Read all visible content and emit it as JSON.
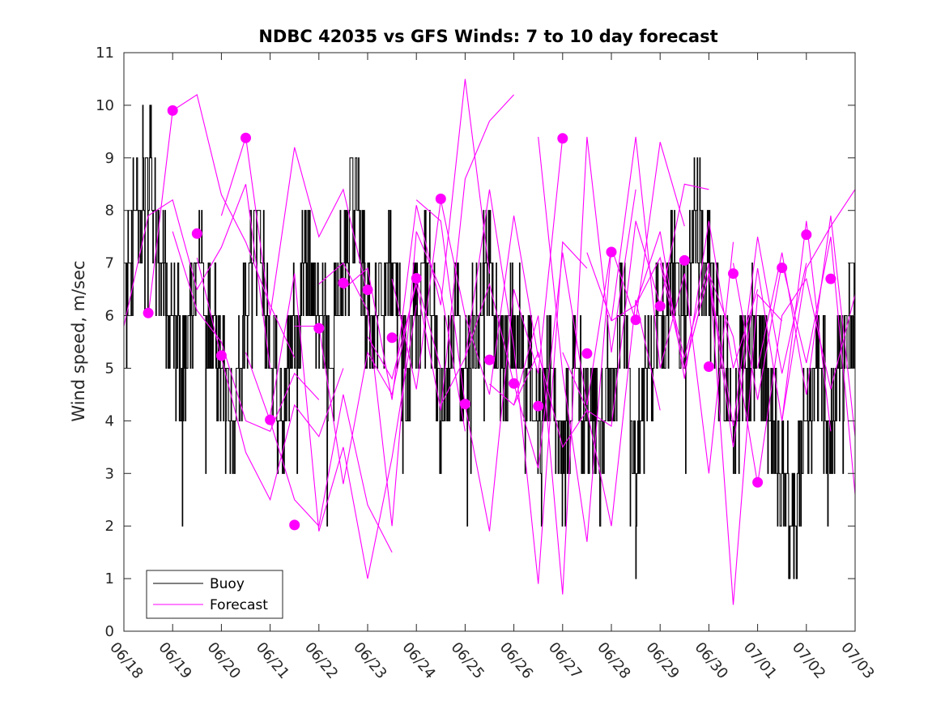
{
  "chart_data": {
    "type": "line",
    "title": "NDBC 42035 vs GFS Winds: 7 to 10 day forecast",
    "xlabel": "",
    "ylabel": "Wind speed, m/sec",
    "x_ticks": [
      "06/18",
      "06/19",
      "06/20",
      "06/21",
      "06/22",
      "06/23",
      "06/24",
      "06/25",
      "06/26",
      "06/27",
      "06/28",
      "06/29",
      "06/30",
      "07/01",
      "07/02",
      "07/03"
    ],
    "xlim": [
      "2023-06-18",
      "2023-07-03"
    ],
    "ylim": [
      0,
      11
    ],
    "y_ticks": [
      0,
      1,
      2,
      3,
      4,
      5,
      6,
      7,
      8,
      9,
      10,
      11
    ],
    "grid": false,
    "legend": {
      "position": "bottom-left",
      "entries": [
        "Buoy",
        "Forecast"
      ]
    },
    "colors": {
      "buoy": "#000000",
      "forecast": "#ff00ff",
      "axes": "#262626"
    },
    "series": [
      {
        "name": "Buoy",
        "style": "stairs",
        "x": [
          "2023-06-18",
          "06-18 06h",
          "06-18 12h",
          "06-18 18h",
          "2023-06-19",
          "06-19 06h",
          "06-19 12h",
          "06-19 18h",
          "2023-06-20",
          "06-20 06h",
          "06-20 12h",
          "06-20 18h",
          "2023-06-21",
          "06-21 06h",
          "06-21 12h",
          "06-21 18h",
          "2023-06-22",
          "06-22 06h",
          "06-22 12h",
          "06-22 18h",
          "2023-06-23",
          "06-23 06h",
          "06-23 12h",
          "06-23 18h",
          "2023-06-24",
          "06-24 06h",
          "06-24 12h",
          "06-24 18h",
          "2023-06-25",
          "06-25 06h",
          "06-25 12h",
          "06-25 18h",
          "2023-06-26",
          "06-26 06h",
          "06-26 12h",
          "06-26 18h",
          "2023-06-27",
          "06-27 06h",
          "06-27 12h",
          "06-27 18h",
          "2023-06-28",
          "06-28 06h",
          "06-28 12h",
          "06-28 18h",
          "2023-06-29",
          "06-29 06h",
          "06-29 12h",
          "06-29 18h",
          "2023-06-30",
          "06-30 06h",
          "06-30 12h",
          "06-30 18h",
          "2023-07-01",
          "07-01 06h",
          "07-01 12h",
          "07-01 18h",
          "2023-07-02",
          "07-02 06h",
          "07-02 12h",
          "07-02 18h",
          "2023-07-03"
        ],
        "y": [
          6,
          8,
          9,
          7,
          6,
          5,
          7,
          6,
          5,
          4,
          6,
          8,
          5,
          4,
          6,
          7,
          6,
          5,
          7,
          8,
          6,
          6,
          7,
          5,
          6,
          7,
          4,
          6,
          5,
          6,
          7,
          5,
          6,
          5,
          4,
          5,
          3,
          5,
          4,
          4,
          5,
          6,
          3,
          5,
          6,
          7,
          6,
          8,
          7,
          5,
          4,
          5,
          6,
          4,
          3,
          2,
          4,
          5,
          4,
          5,
          6
        ]
      }
    ],
    "forecast_runs": [
      {
        "x": [
          "2023-06-18",
          "06-18 12h",
          "2023-06-19",
          "06-19 12h",
          "2023-06-20",
          "06-20 12h",
          "2023-06-21"
        ],
        "y": [
          5.8,
          7.9,
          8.2,
          6.5,
          7.3,
          8.5,
          5.0
        ]
      },
      {
        "x": [
          "06-18 12h",
          "2023-06-19",
          "06-19 12h",
          "2023-06-20",
          "06-20 12h",
          "2023-06-21",
          "06-21 12h"
        ],
        "y": [
          6.0,
          9.9,
          10.2,
          8.3,
          7.4,
          6.2,
          5.2
        ]
      },
      {
        "x": [
          "2023-06-19",
          "06-19 12h",
          "2023-06-20",
          "06-20 12h",
          "2023-06-21",
          "06-21 12h",
          "2023-06-22"
        ],
        "y": [
          7.6,
          6.1,
          5.5,
          4.0,
          3.8,
          4.9,
          4.4
        ]
      },
      {
        "x": [
          "06-19 12h",
          "2023-06-20",
          "06-20 12h",
          "2023-06-21",
          "06-21 12h",
          "2023-06-22",
          "06-22 12h"
        ],
        "y": [
          7.1,
          5.2,
          3.4,
          2.5,
          4.3,
          3.7,
          5.0
        ]
      },
      {
        "x": [
          "2023-06-20",
          "06-20 12h",
          "2023-06-21",
          "06-21 12h",
          "2023-06-22",
          "06-22 12h",
          "2023-06-23"
        ],
        "y": [
          7.9,
          9.4,
          6.0,
          9.2,
          7.5,
          8.4,
          6.4
        ]
      },
      {
        "x": [
          "06-20 12h",
          "2023-06-21",
          "06-21 12h",
          "2023-06-22",
          "06-22 12h",
          "2023-06-23",
          "06-23 12h"
        ],
        "y": [
          5.3,
          4.0,
          2.5,
          2.0,
          4.5,
          2.4,
          1.5
        ]
      },
      {
        "x": [
          "2023-06-21",
          "06-21 12h",
          "2023-06-22",
          "06-22 12h",
          "2023-06-23",
          "06-23 12h",
          "2023-06-24"
        ],
        "y": [
          4.1,
          6.8,
          1.9,
          3.5,
          1.0,
          3.3,
          6.2
        ]
      },
      {
        "x": [
          "06-21 12h",
          "2023-06-22",
          "06-22 12h",
          "2023-06-23",
          "06-23 12h",
          "2023-06-24",
          "06-24 12h"
        ],
        "y": [
          5.8,
          5.8,
          2.8,
          5.3,
          4.5,
          6.7,
          5.0
        ]
      },
      {
        "x": [
          "2023-06-22",
          "06-22 12h",
          "2023-06-23",
          "06-23 12h",
          "2023-06-24",
          "06-24 12h",
          "2023-06-25"
        ],
        "y": [
          6.6,
          7.0,
          6.1,
          2.0,
          7.6,
          6.5,
          3.8
        ]
      },
      {
        "x": [
          "06-22 12h",
          "2023-06-23",
          "06-23 12h",
          "2023-06-24",
          "06-24 12h",
          "2023-06-25",
          "06-25 12h"
        ],
        "y": [
          6.5,
          6.9,
          4.4,
          8.1,
          6.2,
          10.5,
          6.8
        ]
      },
      {
        "x": [
          "2023-06-23",
          "06-23 12h",
          "2023-06-24",
          "06-24 12h",
          "2023-06-25",
          "06-25 12h",
          "2023-06-26"
        ],
        "y": [
          5.6,
          4.8,
          6.6,
          4.2,
          8.6,
          9.7,
          10.2
        ]
      },
      {
        "x": [
          "06-23 12h",
          "2023-06-24",
          "06-24 12h",
          "2023-06-25",
          "06-25 12h",
          "2023-06-26",
          "06-26 12h"
        ],
        "y": [
          6.7,
          4.6,
          8.2,
          6.0,
          4.5,
          7.9,
          5.2
        ]
      },
      {
        "x": [
          "2023-06-24",
          "06-24 12h",
          "2023-06-25",
          "06-25 12h",
          "2023-06-26",
          "06-26 12h",
          "2023-06-27"
        ],
        "y": [
          8.2,
          7.8,
          4.3,
          1.9,
          6.5,
          4.9,
          9.4
        ]
      },
      {
        "x": [
          "06-24 12h",
          "2023-06-25",
          "06-25 12h",
          "2023-06-26",
          "06-26 12h",
          "2023-06-27",
          "06-27 12h"
        ],
        "y": [
          4.3,
          5.2,
          8.4,
          5.4,
          0.9,
          7.4,
          6.9
        ]
      },
      {
        "x": [
          "2023-06-25",
          "06-25 12h",
          "2023-06-26",
          "06-26 12h",
          "2023-06-27",
          "06-27 12h",
          "2023-06-28"
        ],
        "y": [
          5.2,
          6.6,
          4.7,
          3.1,
          7.2,
          4.3,
          7.3
        ]
      },
      {
        "x": [
          "06-25 12h",
          "2023-06-26",
          "06-26 12h",
          "2023-06-27",
          "06-27 12h",
          "2023-06-28",
          "06-28 12h"
        ],
        "y": [
          4.7,
          4.3,
          6.0,
          0.7,
          9.4,
          5.3,
          8.4
        ]
      },
      {
        "x": [
          "2023-06-26",
          "06-26 12h",
          "2023-06-27",
          "06-27 12h",
          "2023-06-28",
          "06-28 12h",
          "2023-06-29"
        ],
        "y": [
          4.3,
          5.3,
          3.5,
          4.2,
          2.0,
          6.3,
          4.2
        ]
      },
      {
        "x": [
          "06-26 12h",
          "2023-06-27",
          "06-27 12h",
          "2023-06-28",
          "06-28 12h",
          "2023-06-29",
          "06-29 12h"
        ],
        "y": [
          9.4,
          4.9,
          1.7,
          7.3,
          5.9,
          9.3,
          7.7
        ]
      },
      {
        "x": [
          "2023-06-27",
          "06-27 12h",
          "2023-06-28",
          "06-28 12h",
          "2023-06-29",
          "06-29 12h",
          "2023-06-30"
        ],
        "y": [
          5.3,
          4.2,
          3.9,
          7.8,
          6.2,
          8.5,
          8.4
        ]
      },
      {
        "x": [
          "06-27 12h",
          "2023-06-28",
          "06-28 12h",
          "2023-06-29",
          "06-29 12h",
          "2023-06-30",
          "06-30 12h"
        ],
        "y": [
          7.2,
          5.9,
          9.4,
          5.0,
          6.8,
          3.0,
          7.4
        ]
      },
      {
        "x": [
          "2023-06-28",
          "06-28 12h",
          "2023-06-29",
          "06-29 12h",
          "2023-06-30",
          "06-30 12h",
          "2023-07-01"
        ],
        "y": [
          5.9,
          6.2,
          7.6,
          4.8,
          7.8,
          5.0,
          6.5
        ]
      },
      {
        "x": [
          "06-28 12h",
          "2023-06-29",
          "06-29 12h",
          "2023-06-30",
          "06-30 12h",
          "2023-07-01",
          "07-01 12h"
        ],
        "y": [
          6.2,
          7.1,
          5.2,
          7.0,
          0.5,
          6.4,
          5.9
        ]
      },
      {
        "x": [
          "2023-06-29",
          "06-29 12h",
          "2023-06-30",
          "06-30 12h",
          "2023-07-01",
          "07-01 12h",
          "2023-07-02"
        ],
        "y": [
          7.0,
          5.0,
          6.8,
          3.9,
          7.5,
          4.9,
          7.0
        ]
      },
      {
        "x": [
          "06-29 12h",
          "2023-06-30",
          "06-30 12h",
          "2023-07-01",
          "07-01 12h",
          "2023-07-02",
          "07-02 12h"
        ],
        "y": [
          5.0,
          6.8,
          3.5,
          6.9,
          4.0,
          7.8,
          3.8
        ]
      },
      {
        "x": [
          "2023-06-30",
          "06-30 12h",
          "2023-07-01",
          "07-01 12h",
          "2023-07-02",
          "07-02 12h",
          "2023-07-03"
        ],
        "y": [
          6.8,
          5.6,
          2.8,
          6.0,
          6.7,
          4.6,
          6.4
        ]
      },
      {
        "x": [
          "06-30 12h",
          "2023-07-01",
          "07-01 12h",
          "2023-07-02",
          "07-02 12h",
          "2023-07-03"
        ],
        "y": [
          7.0,
          4.4,
          7.0,
          5.1,
          7.5,
          2.6
        ]
      },
      {
        "x": [
          "2023-07-01",
          "07-01 12h",
          "2023-07-02",
          "07-02 12h",
          "2023-07-03"
        ],
        "y": [
          5.0,
          7.2,
          4.5,
          7.9,
          3.7
        ]
      },
      {
        "x": [
          "07-01 12h",
          "2023-07-02",
          "07-02 12h",
          "2023-07-03"
        ],
        "y": [
          4.0,
          6.9,
          7.7,
          8.4
        ]
      }
    ],
    "analysis_points": {
      "x": [
        "06-18 12h",
        "2023-06-19",
        "06-19 12h",
        "2023-06-20",
        "06-20 12h",
        "2023-06-21",
        "06-21 12h",
        "2023-06-22",
        "06-22 12h",
        "2023-06-23",
        "06-23 12h",
        "2023-06-24",
        "06-24 12h",
        "2023-06-25",
        "06-25 12h",
        "2023-06-26",
        "06-26 12h",
        "2023-06-27",
        "06-27 12h",
        "2023-06-28",
        "06-28 12h",
        "2023-06-29",
        "06-29 12h",
        "2023-06-30",
        "06-30 12h",
        "2023-07-01",
        "07-01 12h",
        "2023-07-02",
        "07-02 12h"
      ],
      "y": [
        6.05,
        9.9,
        7.56,
        5.24,
        9.38,
        4.02,
        2.02,
        5.76,
        6.62,
        6.49,
        5.58,
        6.71,
        8.22,
        4.32,
        5.16,
        4.71,
        4.28,
        9.37,
        5.28,
        7.21,
        5.92,
        6.18,
        7.05,
        5.03,
        6.8,
        2.83,
        6.91,
        7.54,
        6.7
      ]
    }
  }
}
